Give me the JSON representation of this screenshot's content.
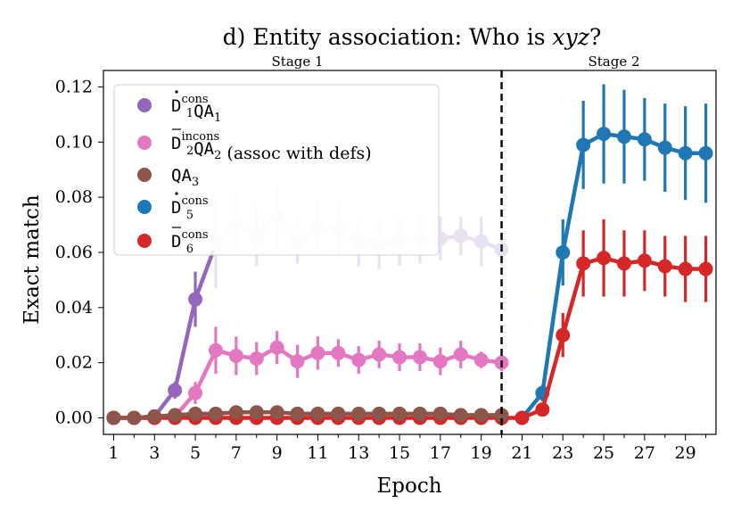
{
  "chart_data": {
    "type": "line",
    "title": "d) Entity association: Who is xyz?",
    "title_prefix": "d) Entity association: Who is ",
    "title_var": "xyz",
    "title_suffix": "?",
    "xlabel": "Epoch",
    "ylabel": "Exact match",
    "xlim": [
      0.5,
      30.5
    ],
    "ylim": [
      -0.006,
      0.126
    ],
    "xticks": [
      1,
      3,
      5,
      7,
      9,
      11,
      13,
      15,
      17,
      19,
      21,
      23,
      25,
      27,
      29
    ],
    "xtick_labels": [
      "1",
      "3",
      "5",
      "7",
      "9",
      "11",
      "13",
      "15",
      "17",
      "19",
      "21",
      "23",
      "25",
      "27",
      "29"
    ],
    "yticks": [
      0.0,
      0.02,
      0.04,
      0.06,
      0.08,
      0.1,
      0.12
    ],
    "ytick_labels": [
      "0.00",
      "0.02",
      "0.04",
      "0.06",
      "0.08",
      "0.10",
      "0.12"
    ],
    "stage_divider_epoch": 20,
    "stages": [
      {
        "label": "Stage 1",
        "center_epoch": 10
      },
      {
        "label": "Stage 2",
        "center_epoch": 25.5
      }
    ],
    "legend_position": "upper-left",
    "series": [
      {
        "name": "D1 cons QA1",
        "legend": {
          "letter": "D",
          "mark": "dot",
          "sup": "cons",
          "sub": "1",
          "extra": "QA",
          "extra_sub": "1",
          "note": ""
        },
        "color": "#9467bd",
        "x": [
          1,
          2,
          3,
          4,
          5,
          6,
          7,
          8,
          9,
          10,
          11,
          12,
          13,
          14,
          15,
          16,
          17,
          18,
          19,
          20
        ],
        "values": [
          0.0,
          0.0,
          0.0005,
          0.01,
          0.043,
          0.063,
          0.071,
          0.066,
          0.073,
          0.064,
          0.069,
          0.068,
          0.064,
          0.063,
          0.064,
          0.065,
          0.065,
          0.066,
          0.064,
          0.061
        ],
        "err": [
          0.0,
          0.0,
          0.001,
          0.003,
          0.01,
          0.016,
          0.011,
          0.011,
          0.011,
          0.008,
          0.009,
          0.009,
          0.009,
          0.009,
          0.009,
          0.009,
          0.008,
          0.007,
          0.009,
          0.006
        ],
        "faded_from_epoch": 6,
        "faded_color": "#e8e1f2"
      },
      {
        "name": "D2 incons QA2 (assoc with defs)",
        "legend": {
          "letter": "D",
          "mark": "bar",
          "sup": "incons",
          "sub": "2",
          "extra": "QA",
          "extra_sub": "2",
          "note": " (assoc with defs)"
        },
        "color": "#e377c2",
        "x": [
          1,
          2,
          3,
          4,
          5,
          6,
          7,
          8,
          9,
          10,
          11,
          12,
          13,
          14,
          15,
          16,
          17,
          18,
          19,
          20
        ],
        "values": [
          0.0,
          0.0,
          0.0,
          0.0005,
          0.009,
          0.0245,
          0.0225,
          0.0215,
          0.0255,
          0.0205,
          0.0235,
          0.0235,
          0.021,
          0.023,
          0.022,
          0.022,
          0.0205,
          0.023,
          0.021,
          0.02
        ],
        "err": [
          0.0,
          0.0,
          0.0,
          0.001,
          0.004,
          0.0085,
          0.007,
          0.006,
          0.006,
          0.006,
          0.006,
          0.005,
          0.005,
          0.005,
          0.005,
          0.005,
          0.005,
          0.005,
          0.003,
          0.003
        ]
      },
      {
        "name": "QA3",
        "legend": {
          "letter": "",
          "mark": "",
          "sup": "",
          "sub": "",
          "extra": "QA",
          "extra_sub": "3",
          "note": ""
        },
        "color": "#8c564b",
        "x": [
          1,
          2,
          3,
          4,
          5,
          6,
          7,
          8,
          9,
          10,
          11,
          12,
          13,
          14,
          15,
          16,
          17,
          18,
          19,
          20
        ],
        "values": [
          0.0,
          0.0,
          0.0005,
          0.001,
          0.0015,
          0.0015,
          0.002,
          0.002,
          0.002,
          0.0015,
          0.0015,
          0.0015,
          0.0015,
          0.0015,
          0.0015,
          0.0015,
          0.0015,
          0.001,
          0.001,
          0.001
        ],
        "err": [
          0.0,
          0.0,
          0.0,
          0.0005,
          0.0005,
          0.001,
          0.001,
          0.001,
          0.001,
          0.001,
          0.001,
          0.001,
          0.001,
          0.001,
          0.001,
          0.001,
          0.001,
          0.001,
          0.001,
          0.001
        ]
      },
      {
        "name": "D5 cons",
        "legend": {
          "letter": "D",
          "mark": "dot",
          "sup": "cons",
          "sub": "5",
          "extra": "",
          "extra_sub": "",
          "note": ""
        },
        "color": "#1f77b4",
        "x": [
          21,
          22,
          23,
          24,
          25,
          26,
          27,
          28,
          29,
          30
        ],
        "values": [
          0.0,
          0.009,
          0.06,
          0.099,
          0.103,
          0.102,
          0.101,
          0.098,
          0.096,
          0.096
        ],
        "err": [
          0.0,
          0.003,
          0.012,
          0.016,
          0.018,
          0.017,
          0.015,
          0.016,
          0.017,
          0.018
        ]
      },
      {
        "name": "D6 cons",
        "legend": {
          "letter": "D",
          "mark": "bar",
          "sup": "cons",
          "sub": "6",
          "extra": "",
          "extra_sub": "",
          "note": ""
        },
        "color": "#d62728",
        "x": [
          1,
          2,
          3,
          4,
          5,
          6,
          7,
          8,
          9,
          10,
          11,
          12,
          13,
          14,
          15,
          16,
          17,
          18,
          19,
          20,
          21,
          22,
          23,
          24,
          25,
          26,
          27,
          28,
          29,
          30
        ],
        "values": [
          0.0,
          0.0,
          0.0,
          0.0,
          0.0,
          0.0,
          0.0,
          0.0,
          0.0,
          0.0,
          0.0,
          0.0,
          0.0,
          0.0,
          0.0,
          0.0,
          0.0,
          0.0,
          0.0,
          0.0,
          0.0,
          0.003,
          0.03,
          0.056,
          0.058,
          0.056,
          0.057,
          0.055,
          0.054,
          0.054
        ],
        "err": [
          0.0,
          0.0,
          0.0,
          0.0,
          0.0,
          0.0,
          0.0,
          0.0,
          0.0,
          0.0,
          0.0,
          0.0,
          0.0,
          0.0,
          0.0,
          0.0,
          0.0,
          0.0,
          0.0,
          0.0,
          0.0,
          0.002,
          0.008,
          0.012,
          0.014,
          0.012,
          0.011,
          0.011,
          0.012,
          0.012
        ]
      }
    ]
  }
}
